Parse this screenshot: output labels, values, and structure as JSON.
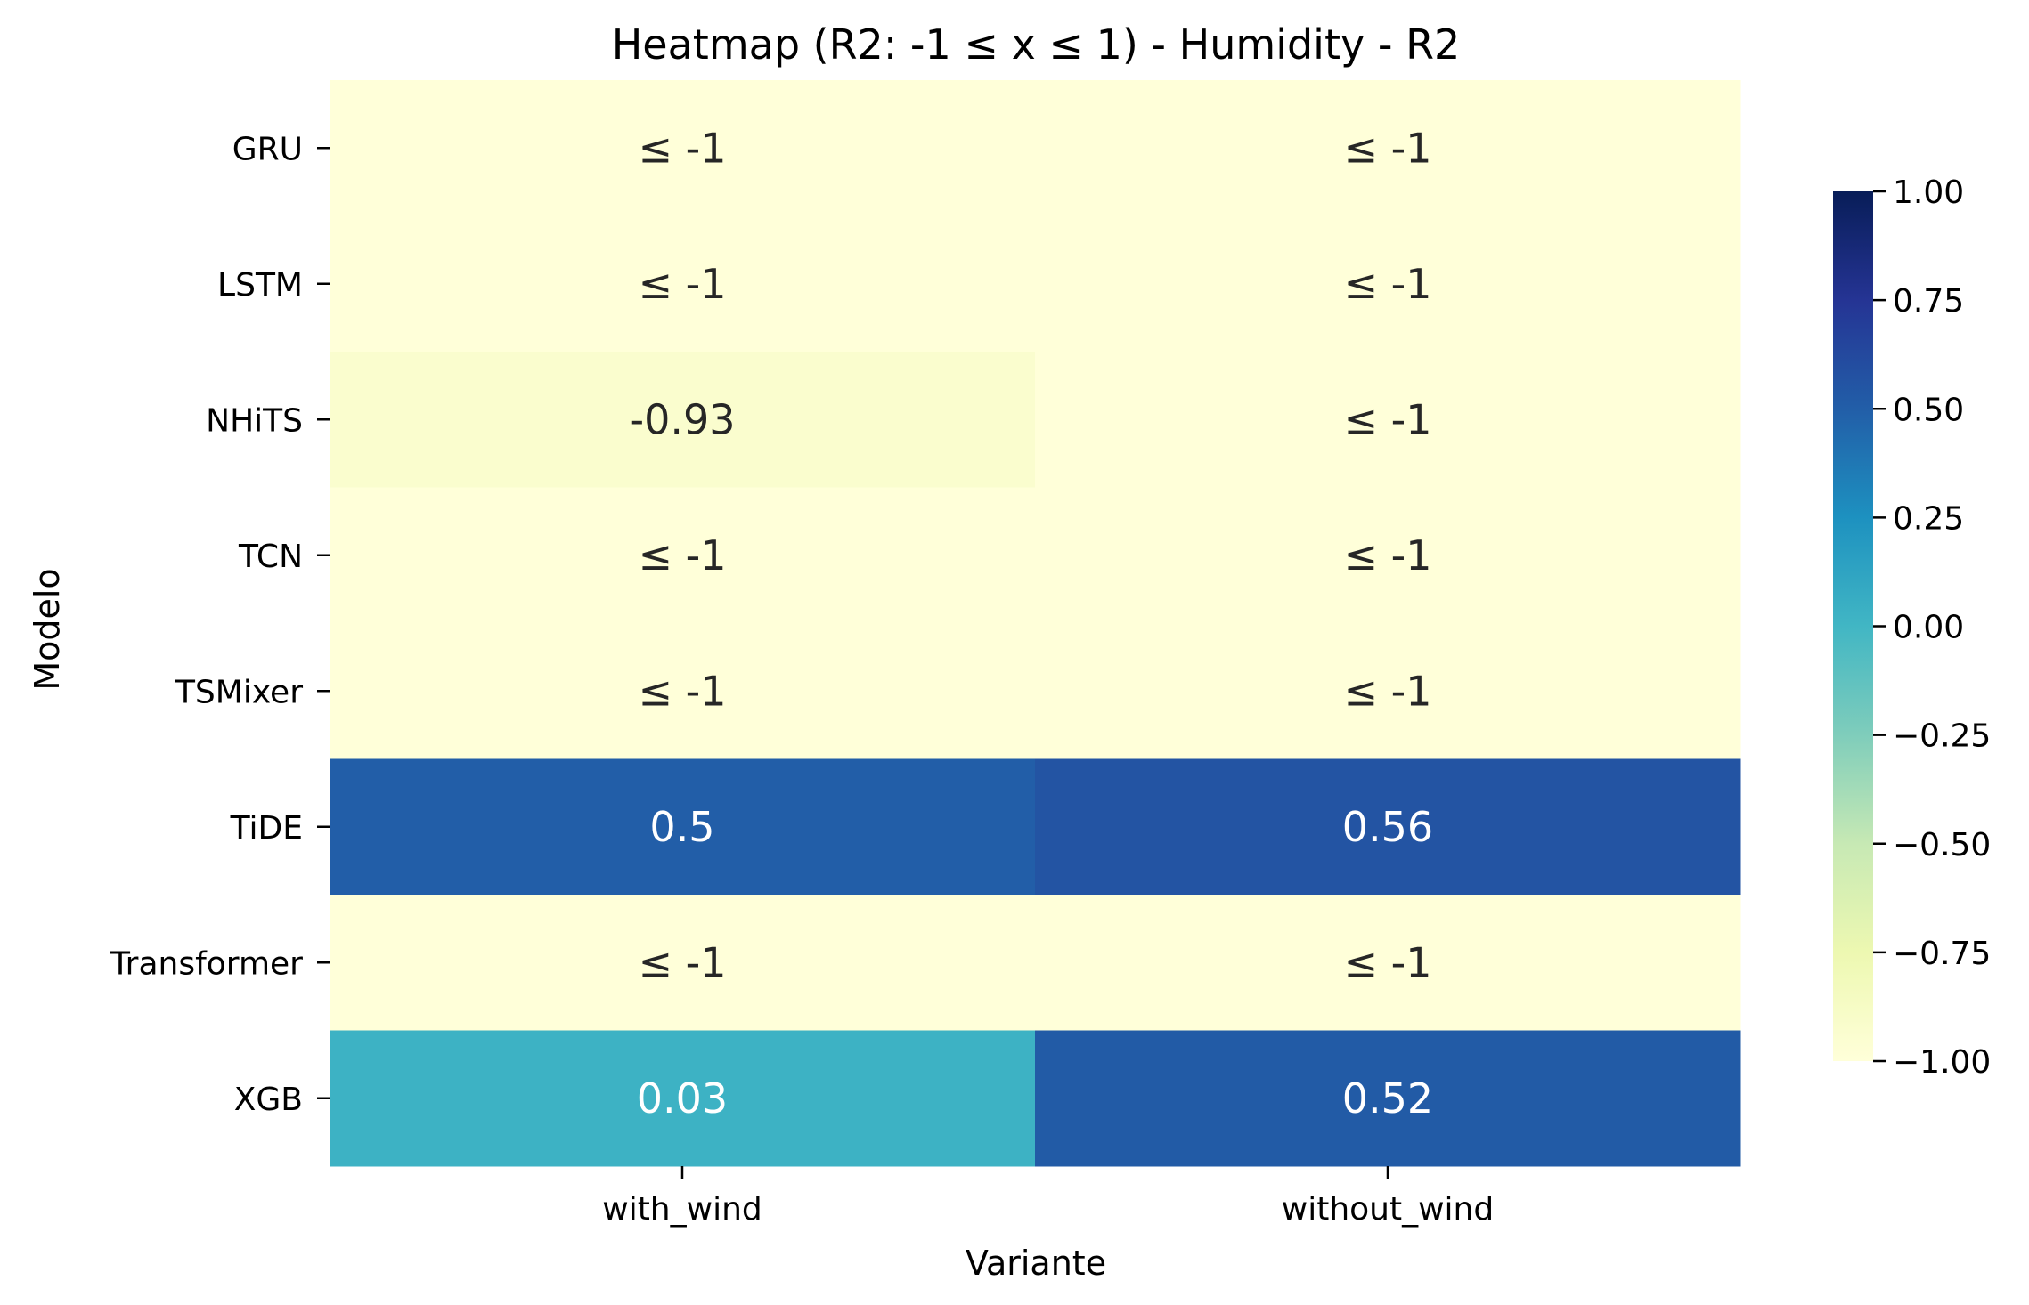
{
  "chart_data": {
    "type": "heatmap",
    "title": "Heatmap (R2: -1 ≤ x ≤ 1) - Humidity - R2",
    "xlabel": "Variante",
    "ylabel": "Modelo",
    "columns": [
      "with_wind",
      "without_wind"
    ],
    "rows": [
      "GRU",
      "LSTM",
      "NHiTS",
      "TCN",
      "TSMixer",
      "TiDE",
      "Transformer",
      "XGB"
    ],
    "values": [
      [
        -1,
        -1
      ],
      [
        -1,
        -1
      ],
      [
        -0.93,
        -1
      ],
      [
        -1,
        -1
      ],
      [
        -1,
        -1
      ],
      [
        0.5,
        0.56
      ],
      [
        -1,
        -1
      ],
      [
        0.03,
        0.52
      ]
    ],
    "annotations": [
      [
        "≤ -1",
        "≤ -1"
      ],
      [
        "≤ -1",
        "≤ -1"
      ],
      [
        "-0.93",
        "≤ -1"
      ],
      [
        "≤ -1",
        "≤ -1"
      ],
      [
        "≤ -1",
        "≤ -1"
      ],
      [
        "0.5",
        "0.56"
      ],
      [
        "≤ -1",
        "≤ -1"
      ],
      [
        "0.03",
        "0.52"
      ]
    ],
    "vlim": [
      -1,
      1
    ],
    "colormap": "YlGnBu",
    "colorbar_ticks": [
      1.0,
      0.75,
      0.5,
      0.25,
      0.0,
      -0.25,
      -0.5,
      -0.75,
      -1.0
    ],
    "colorbar_tick_labels": [
      "1.00",
      "0.75",
      "0.50",
      "0.25",
      "0.00",
      "−0.25",
      "−0.50",
      "−0.75",
      "−1.00"
    ],
    "grid": false
  }
}
